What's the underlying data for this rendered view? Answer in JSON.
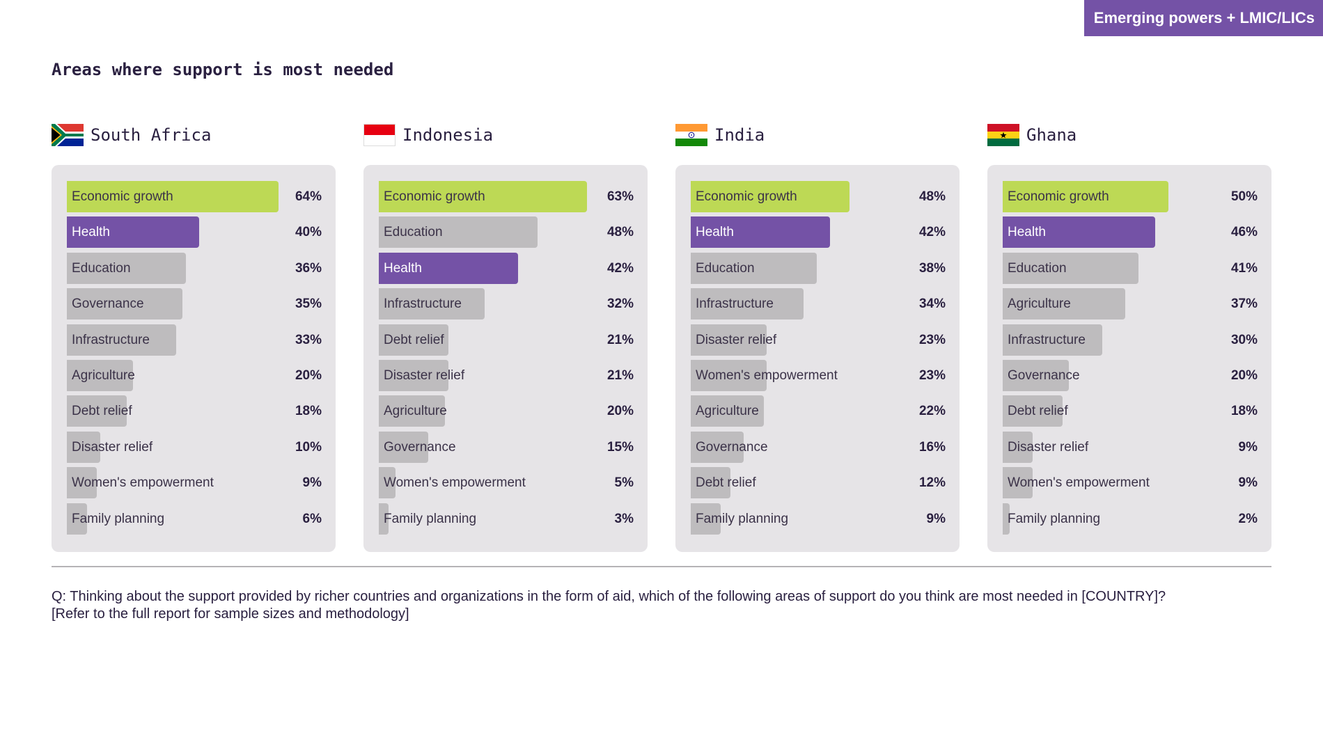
{
  "tag": "Emerging powers + LMIC/LICs",
  "title": "Areas where support is most needed",
  "footnote": {
    "line1": "Q: Thinking about the support provided by richer countries and organizations in the form of aid, which of the following areas of support do you think are most needed in [COUNTRY]?",
    "line2": "[Refer to the full report for sample sizes and methodology]"
  },
  "colors": {
    "accent": "#7452a6",
    "growth": "#bdd955",
    "health": "#7452a6",
    "other": "#bebcbe",
    "panel": "#e6e4e7"
  },
  "chart_data": [
    {
      "type": "bar",
      "orientation": "horizontal",
      "country": "South Africa",
      "flag_icon": "south-africa-flag-icon",
      "categories": [
        "Economic growth",
        "Health",
        "Education",
        "Governance",
        "Infrastructure",
        "Agriculture",
        "Debt relief",
        "Disaster relief",
        "Women's empowerment",
        "Family planning"
      ],
      "values": [
        64,
        40,
        36,
        35,
        33,
        20,
        18,
        10,
        9,
        6
      ],
      "value_labels": [
        "64%",
        "40%",
        "36%",
        "35%",
        "33%",
        "20%",
        "18%",
        "10%",
        "9%",
        "6%"
      ],
      "xlim": [
        0,
        100
      ],
      "unit": "%"
    },
    {
      "type": "bar",
      "orientation": "horizontal",
      "country": "Indonesia",
      "flag_icon": "indonesia-flag-icon",
      "categories": [
        "Economic growth",
        "Education",
        "Health",
        "Infrastructure",
        "Debt relief",
        "Disaster relief",
        "Agriculture",
        "Governance",
        "Women's empowerment",
        "Family planning"
      ],
      "values": [
        63,
        48,
        42,
        32,
        21,
        21,
        20,
        15,
        5,
        3
      ],
      "value_labels": [
        "63%",
        "48%",
        "42%",
        "32%",
        "21%",
        "21%",
        "20%",
        "15%",
        "5%",
        "3%"
      ],
      "xlim": [
        0,
        100
      ],
      "unit": "%"
    },
    {
      "type": "bar",
      "orientation": "horizontal",
      "country": "India",
      "flag_icon": "india-flag-icon",
      "categories": [
        "Economic growth",
        "Health",
        "Education",
        "Infrastructure",
        "Disaster relief",
        "Women's empowerment",
        "Agriculture",
        "Governance",
        "Debt relief",
        "Family planning"
      ],
      "values": [
        48,
        42,
        38,
        34,
        23,
        23,
        22,
        16,
        12,
        9
      ],
      "value_labels": [
        "48%",
        "42%",
        "38%",
        "34%",
        "23%",
        "23%",
        "22%",
        "16%",
        "12%",
        "9%"
      ],
      "xlim": [
        0,
        100
      ],
      "unit": "%"
    },
    {
      "type": "bar",
      "orientation": "horizontal",
      "country": "Ghana",
      "flag_icon": "ghana-flag-icon",
      "categories": [
        "Economic growth",
        "Health",
        "Education",
        "Agriculture",
        "Infrastructure",
        "Governance",
        "Debt relief",
        "Disaster relief",
        "Women's empowerment",
        "Family planning"
      ],
      "values": [
        50,
        46,
        41,
        37,
        30,
        20,
        18,
        9,
        9,
        2
      ],
      "value_labels": [
        "50%",
        "46%",
        "41%",
        "37%",
        "30%",
        "20%",
        "18%",
        "9%",
        "9%",
        "2%"
      ],
      "xlim": [
        0,
        100
      ],
      "unit": "%"
    }
  ]
}
